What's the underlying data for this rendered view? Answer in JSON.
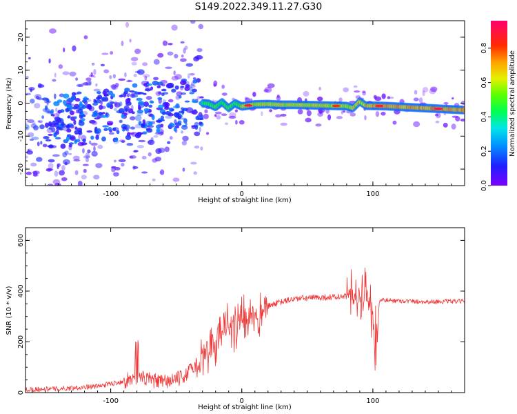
{
  "title": "S149.2022.349.11.27.G30",
  "chart_data": [
    {
      "type": "heatmap",
      "xlabel": "Height of straight line (km)",
      "ylabel": "Frequency (Hz)",
      "xlim": [
        -165,
        170
      ],
      "ylim": [
        -25,
        25
      ],
      "xticks": [
        -100,
        0,
        100
      ],
      "yticks": [
        -20,
        -10,
        0,
        10,
        20
      ],
      "colorbar": {
        "label": "Normalized spectral amplitude",
        "range": [
          0,
          1
        ],
        "ticks": [
          "0.0",
          "0.2",
          "0.4",
          "0.6",
          "0.8"
        ]
      },
      "ridge": {
        "x": [
          -30,
          -25,
          -20,
          -15,
          -10,
          -5,
          0,
          10,
          20,
          30,
          40,
          50,
          60,
          70,
          80,
          85,
          90,
          95,
          100,
          110,
          120,
          130,
          140,
          150,
          160,
          170
        ],
        "y": [
          0.0,
          -0.2,
          -1.2,
          0.3,
          -1.5,
          0.0,
          -1.0,
          -0.4,
          -0.3,
          -0.5,
          -0.5,
          -0.6,
          -0.7,
          -0.8,
          -0.9,
          -1.5,
          0.5,
          -0.8,
          -0.8,
          -0.9,
          -1.1,
          -1.3,
          -1.5,
          -1.7,
          -1.9,
          -2.1
        ]
      }
    },
    {
      "type": "line",
      "xlabel": "Height of straight line (km)",
      "ylabel": "SNR (10 * v/v)",
      "xlim": [
        -165,
        170
      ],
      "ylim": [
        0,
        650
      ],
      "xticks": [
        -100,
        0,
        100
      ],
      "yticks": [
        0,
        200,
        400,
        600
      ],
      "color": "#f03535",
      "envelope": {
        "x": [
          -165,
          -140,
          -110,
          -90,
          -80,
          -60,
          -45,
          -35,
          -25,
          -15,
          -5,
          5,
          15,
          25,
          40,
          60,
          80,
          90,
          95,
          100,
          102,
          105,
          120,
          140,
          170
        ],
        "y": [
          12,
          15,
          25,
          45,
          60,
          40,
          60,
          110,
          175,
          230,
          270,
          300,
          330,
          350,
          370,
          375,
          378,
          380,
          385,
          300,
          90,
          365,
          362,
          358,
          360
        ]
      }
    }
  ]
}
